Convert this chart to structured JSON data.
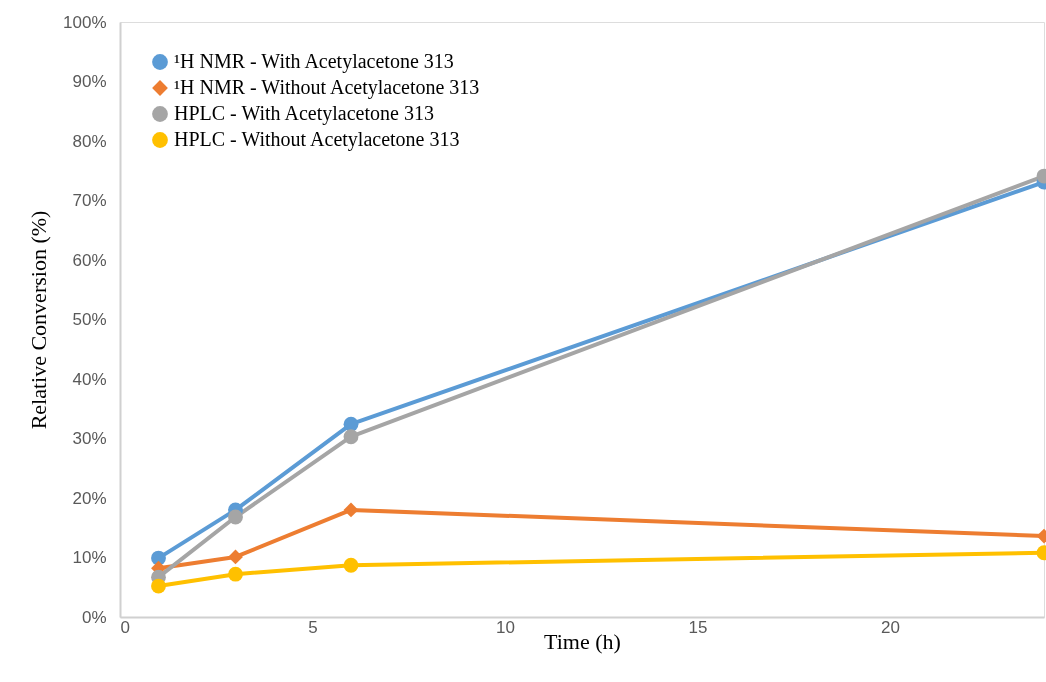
{
  "chart_data": {
    "type": "line",
    "xlabel": "Time (h)",
    "ylabel": "Relative Conversion (%)",
    "xlim": [
      0,
      24
    ],
    "xticks": [
      0,
      5,
      10,
      15,
      20
    ],
    "ylim": [
      0,
      100
    ],
    "yticks": [
      {
        "value": 0,
        "label": "0%"
      },
      {
        "value": 10,
        "label": "10%"
      },
      {
        "value": 20,
        "label": "20%"
      },
      {
        "value": 30,
        "label": "30%"
      },
      {
        "value": 40,
        "label": "40%"
      },
      {
        "value": 50,
        "label": "50%"
      },
      {
        "value": 60,
        "label": "60%"
      },
      {
        "value": 70,
        "label": "70%"
      },
      {
        "value": 80,
        "label": "80%"
      },
      {
        "value": 90,
        "label": "90%"
      },
      {
        "value": 100,
        "label": "100%"
      }
    ],
    "x": [
      1,
      3,
      6,
      24
    ],
    "grid": false,
    "legend": "top left",
    "line_style": "solid",
    "series": [
      {
        "name": "¹H NMR - With Acetylacetone 313",
        "color": "#5b9bd5",
        "marker": "circle",
        "values": [
          9.9,
          18.0,
          32.4,
          73.1
        ]
      },
      {
        "name": "¹H NMR - Without Acetylacetone 313",
        "color": "#ed7d31",
        "marker": "diamond",
        "values": [
          8.2,
          10.1,
          18.0,
          13.6
        ]
      },
      {
        "name": "HPLC - With Acetylacetone 313",
        "color": "#a5a5a5",
        "marker": "circle",
        "values": [
          6.7,
          16.8,
          30.3,
          74.1
        ]
      },
      {
        "name": "HPLC - Without Acetylacetone 313",
        "color": "#ffc000",
        "marker": "circle",
        "values": [
          5.2,
          7.2,
          8.7,
          10.8
        ]
      }
    ]
  }
}
